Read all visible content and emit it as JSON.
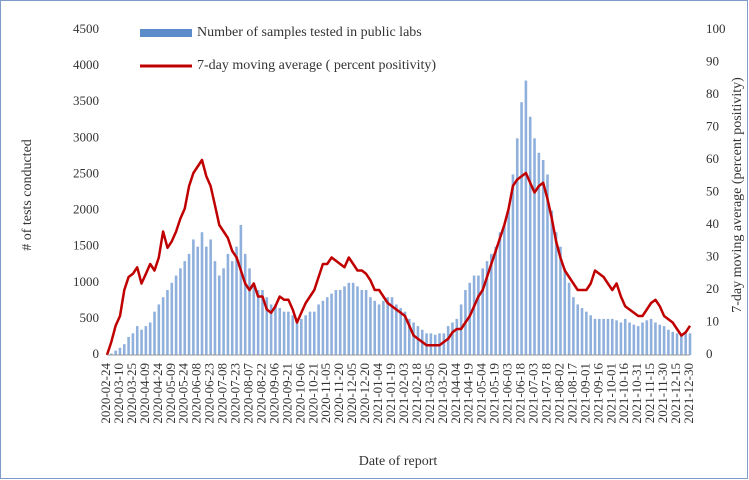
{
  "chart_data": {
    "type": "bar_line",
    "xlabel": "Date of report",
    "ylabel": "# of tests conducted",
    "y2label": "7-day moving average (percent positivity)",
    "categories": [
      "2020-02-24",
      null,
      null,
      "2020-03-10",
      null,
      null,
      "2020-03-25",
      null,
      null,
      "2020-04-09",
      null,
      null,
      "2020-04-24",
      null,
      null,
      "2020-05-09",
      null,
      null,
      "2020-05-24",
      null,
      null,
      "2020-06-08",
      null,
      null,
      "2020-06-23",
      null,
      null,
      "2020-07-08",
      null,
      null,
      "2020-07-23",
      null,
      null,
      "2020-08-07",
      null,
      null,
      "2020-08-22",
      null,
      null,
      "2020-09-06",
      null,
      null,
      "2020-09-21",
      null,
      null,
      "2020-10-06",
      null,
      null,
      "2020-10-21",
      null,
      null,
      "2020-11-05",
      null,
      null,
      "2020-11-20",
      null,
      null,
      "2020-12-05",
      null,
      null,
      "2020-12-20",
      null,
      null,
      "2021-01-04",
      null,
      null,
      "2021-01-19",
      null,
      null,
      "2021-02-03",
      null,
      null,
      "2021-02-18",
      null,
      null,
      "2021-03-05",
      null,
      null,
      "2021-03-20",
      null,
      null,
      "2021-04-04",
      null,
      null,
      "2021-04-19",
      null,
      null,
      "2021-05-04",
      null,
      null,
      "2021-05-19",
      null,
      null,
      "2021-06-03",
      null,
      null,
      "2021-06-18",
      null,
      null,
      "2021-07-03",
      null,
      null,
      "2021-07-18",
      null,
      null,
      "2021-08-02",
      null,
      null,
      "2021-08-17",
      null,
      null,
      "2021-09-01",
      null,
      null,
      "2021-09-16",
      null,
      null,
      "2021-10-01",
      null,
      null,
      "2021-10-16",
      null,
      null,
      "2021-10-31",
      null,
      null,
      "2021-11-15",
      null,
      null,
      "2021-11-30",
      null,
      null,
      "2021-12-15",
      null,
      null,
      "2021-12-30"
    ],
    "series": [
      {
        "name": "Number of samples tested in public labs",
        "color": "#8fb0dc",
        "legend_color": "#5b8bc9",
        "axis": "y",
        "values": [
          0,
          20,
          60,
          100,
          150,
          250,
          300,
          400,
          350,
          400,
          450,
          600,
          700,
          800,
          900,
          1000,
          1100,
          1200,
          1300,
          1400,
          1600,
          1500,
          1700,
          1500,
          1600,
          1300,
          1100,
          1200,
          1400,
          1300,
          1500,
          1800,
          1400,
          1200,
          1000,
          900,
          900,
          800,
          700,
          700,
          650,
          600,
          600,
          550,
          500,
          500,
          550,
          600,
          600,
          700,
          750,
          800,
          850,
          900,
          900,
          950,
          1000,
          1000,
          950,
          900,
          900,
          800,
          750,
          700,
          750,
          800,
          800,
          700,
          650,
          600,
          500,
          450,
          400,
          350,
          300,
          300,
          280,
          300,
          300,
          400,
          450,
          500,
          700,
          900,
          1000,
          1100,
          1100,
          1200,
          1300,
          1400,
          1500,
          1700,
          1800,
          2000,
          2500,
          3000,
          3500,
          3800,
          3300,
          3000,
          2800,
          2700,
          2500,
          2000,
          1700,
          1500,
          1200,
          1000,
          800,
          700,
          650,
          600,
          550,
          500,
          500,
          500,
          500,
          500,
          480,
          450,
          500,
          450,
          420,
          400,
          450,
          480,
          500,
          450,
          420,
          400,
          350,
          320,
          300,
          280,
          300,
          300
        ]
      },
      {
        "name": "7-day moving average ( percent positivity)",
        "color": "#c00000",
        "axis": "y2",
        "values": [
          0,
          4,
          9,
          12,
          20,
          24,
          25,
          27,
          22,
          25,
          28,
          26,
          30,
          38,
          33,
          35,
          38,
          42,
          45,
          52,
          56,
          58,
          60,
          55,
          52,
          46,
          40,
          38,
          36,
          32,
          30,
          26,
          22,
          20,
          22,
          18,
          18,
          14,
          13,
          15,
          18,
          17,
          17,
          14,
          10,
          13,
          16,
          18,
          20,
          24,
          28,
          28,
          30,
          29,
          28,
          27,
          30,
          28,
          26,
          26,
          25,
          23,
          20,
          20,
          18,
          16,
          15,
          14,
          13,
          12,
          9,
          6,
          5,
          4,
          3,
          3,
          3,
          3,
          4,
          5,
          7,
          8,
          8,
          10,
          12,
          15,
          18,
          20,
          24,
          28,
          32,
          36,
          40,
          45,
          52,
          54,
          55,
          56,
          53,
          50,
          52,
          53,
          48,
          42,
          35,
          30,
          26,
          24,
          22,
          20,
          20,
          20,
          22,
          26,
          25,
          24,
          22,
          20,
          22,
          18,
          15,
          14,
          13,
          12,
          12,
          14,
          16,
          17,
          15,
          12,
          11,
          10,
          8,
          6,
          7,
          9
        ]
      }
    ],
    "ylim": [
      0,
      4500
    ],
    "yticks": [
      0,
      500,
      1000,
      1500,
      2000,
      2500,
      3000,
      3500,
      4000,
      4500
    ],
    "y2lim": [
      0,
      100
    ],
    "y2ticks": [
      0,
      10,
      20,
      30,
      40,
      50,
      60,
      70,
      80,
      90,
      100
    ]
  }
}
